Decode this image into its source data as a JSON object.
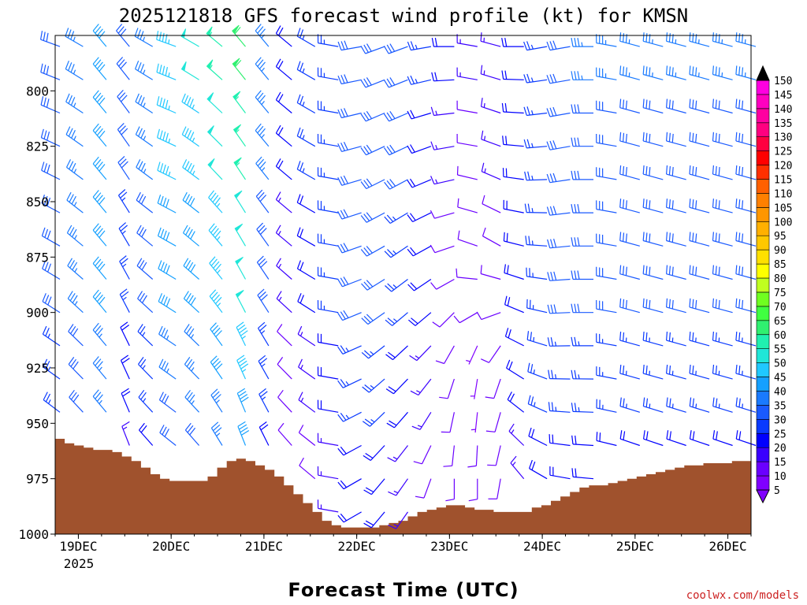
{
  "chart_data": {
    "type": "wind-barb-profile",
    "title": "2025121818 GFS forecast wind profile (kt) for KMSN",
    "xlabel": "Forecast Time (UTC)",
    "ylabel": "",
    "credit": "coolwx.com/models",
    "credit_color": "#cc2222",
    "terrain_color": "#a0522d",
    "x_ticks": [
      "19DEC",
      "20DEC",
      "21DEC",
      "22DEC",
      "23DEC",
      "24DEC",
      "25DEC",
      "26DEC"
    ],
    "x_year": "2025",
    "x_range_hours": [
      0,
      180
    ],
    "y_ticks": [
      "800",
      "825",
      "850",
      "875",
      "900",
      "925",
      "950",
      "975",
      "1000"
    ],
    "y_tick_values": [
      800,
      825,
      850,
      875,
      900,
      925,
      950,
      975,
      1000
    ],
    "y_range_hpa": [
      775,
      1000
    ],
    "barb_levels_hpa": [
      780,
      795,
      810,
      825,
      840,
      855,
      870,
      885,
      900,
      915,
      930,
      945,
      960,
      975,
      990
    ],
    "surface_pressure_hpa": [
      957,
      959,
      960,
      961,
      962,
      962,
      963,
      965,
      967,
      970,
      973,
      975,
      976,
      976,
      976,
      976,
      974,
      970,
      967,
      966,
      967,
      969,
      971,
      974,
      978,
      982,
      986,
      990,
      994,
      996,
      997,
      997,
      997,
      997,
      996,
      995,
      994,
      992,
      990,
      989,
      988,
      987,
      987,
      988,
      989,
      989,
      990,
      990,
      990,
      990,
      988,
      987,
      985,
      983,
      981,
      979,
      978,
      978,
      977,
      976,
      975,
      974,
      973,
      972,
      971,
      970,
      969,
      969,
      968,
      968,
      968,
      967,
      967
    ],
    "wind_profile": {
      "hours": [
        0,
        6,
        12,
        18,
        24,
        30,
        36,
        42,
        48,
        54,
        60,
        66,
        72,
        78,
        84,
        90,
        96,
        102,
        108,
        114,
        120,
        126,
        132,
        138,
        144,
        150,
        156,
        162,
        168,
        174,
        180
      ],
      "levels_hpa": [
        780,
        825,
        875,
        925,
        975
      ],
      "direction_deg": [
        [
          290,
          300,
          320,
          320,
          300,
          290,
          300,
          310,
          320,
          320,
          310,
          300,
          280,
          260,
          250,
          250,
          260,
          270,
          280,
          285,
          270,
          260,
          260,
          270,
          280,
          285,
          285,
          285,
          285,
          285,
          285
        ],
        [
          295,
          305,
          320,
          325,
          305,
          295,
          305,
          315,
          325,
          320,
          310,
          300,
          280,
          255,
          245,
          245,
          250,
          260,
          280,
          290,
          275,
          265,
          260,
          270,
          280,
          285,
          285,
          285,
          285,
          285,
          285
        ],
        [
          300,
          310,
          320,
          330,
          310,
          300,
          310,
          320,
          330,
          325,
          310,
          300,
          280,
          250,
          240,
          235,
          240,
          250,
          290,
          300,
          285,
          275,
          265,
          270,
          280,
          285,
          285,
          285,
          285,
          285,
          285
        ],
        [
          305,
          315,
          320,
          335,
          315,
          305,
          315,
          325,
          335,
          330,
          315,
          305,
          280,
          245,
          230,
          225,
          220,
          200,
          190,
          200,
          300,
          290,
          270,
          270,
          280,
          285,
          285,
          285,
          285,
          285,
          285
        ],
        [
          310,
          320,
          320,
          340,
          320,
          310,
          320,
          330,
          340,
          335,
          320,
          310,
          280,
          240,
          220,
          215,
          200,
          180,
          180,
          190,
          320,
          300,
          280,
          275,
          285,
          290,
          290,
          290,
          290,
          290,
          290
        ]
      ],
      "speed_kt": [
        [
          30,
          35,
          40,
          30,
          35,
          45,
          50,
          55,
          60,
          35,
          20,
          25,
          25,
          30,
          30,
          30,
          25,
          20,
          15,
          15,
          20,
          25,
          30,
          35,
          35,
          35,
          35,
          35,
          35,
          35,
          35
        ],
        [
          30,
          35,
          40,
          30,
          35,
          45,
          45,
          50,
          55,
          35,
          20,
          25,
          25,
          30,
          30,
          30,
          20,
          15,
          10,
          15,
          20,
          25,
          30,
          30,
          30,
          30,
          30,
          30,
          30,
          30,
          30
        ],
        [
          30,
          35,
          40,
          25,
          30,
          40,
          40,
          45,
          50,
          30,
          15,
          20,
          25,
          30,
          30,
          25,
          20,
          10,
          10,
          10,
          20,
          25,
          30,
          30,
          30,
          30,
          30,
          30,
          30,
          30,
          30
        ],
        [
          25,
          30,
          35,
          20,
          25,
          35,
          35,
          40,
          45,
          25,
          10,
          15,
          20,
          25,
          25,
          20,
          15,
          10,
          5,
          10,
          20,
          25,
          25,
          25,
          25,
          25,
          25,
          25,
          25,
          25,
          25
        ],
        [
          20,
          25,
          30,
          15,
          20,
          25,
          30,
          30,
          35,
          20,
          10,
          10,
          15,
          20,
          20,
          15,
          10,
          10,
          10,
          10,
          15,
          20,
          20,
          20,
          20,
          20,
          20,
          20,
          20,
          20,
          20
        ]
      ]
    },
    "colorbar": {
      "levels": [
        5,
        10,
        15,
        20,
        25,
        30,
        35,
        40,
        45,
        50,
        55,
        60,
        65,
        70,
        75,
        80,
        85,
        90,
        95,
        100,
        105,
        110,
        115,
        120,
        125,
        130,
        135,
        140,
        145,
        150
      ],
      "colors": [
        "#8000ff",
        "#6a00ff",
        "#3a00ff",
        "#0000ff",
        "#0a3aff",
        "#1a5aff",
        "#1a7aff",
        "#15a0ff",
        "#20c8ff",
        "#20e6d8",
        "#20f0b0",
        "#30f070",
        "#40ff40",
        "#70ff20",
        "#c0ff20",
        "#ffff00",
        "#ffe000",
        "#ffc800",
        "#ffb000",
        "#ff9600",
        "#ff8000",
        "#ff6000",
        "#ff3000",
        "#ff0000",
        "#ff0040",
        "#ff0080",
        "#ff00a0",
        "#ff00c0",
        "#ff00e0",
        "#ff00ff"
      ]
    }
  }
}
